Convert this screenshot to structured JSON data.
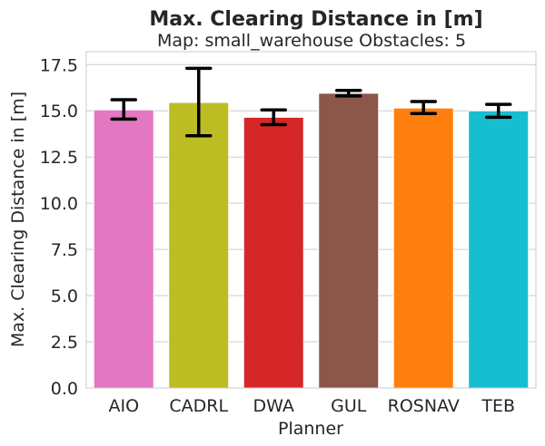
{
  "chart_data": {
    "type": "bar",
    "title": "Max. Clearing Distance in [m]",
    "subtitle": "Map: small_warehouse Obstacles: 5",
    "xlabel": "Planner",
    "ylabel": "Max. Clearing Distance in [m]",
    "ylim": [
      0,
      18.2
    ],
    "yticks": [
      "0.0",
      "2.5",
      "5.0",
      "7.5",
      "10.0",
      "12.5",
      "15.0",
      "17.5"
    ],
    "grid": true,
    "categories": [
      "AIO",
      "CADRL",
      "DWA",
      "GUL",
      "ROSNAV",
      "TEB"
    ],
    "values": [
      15.05,
      15.45,
      14.65,
      15.95,
      15.15,
      15.0
    ],
    "error_low": [
      14.55,
      13.65,
      14.25,
      15.8,
      14.85,
      14.65
    ],
    "error_high": [
      15.6,
      17.3,
      15.05,
      16.1,
      15.5,
      15.35
    ],
    "colors": [
      "#e377c2",
      "#bcbd22",
      "#d62728",
      "#8c564b",
      "#ff7f0e",
      "#17becf"
    ]
  }
}
